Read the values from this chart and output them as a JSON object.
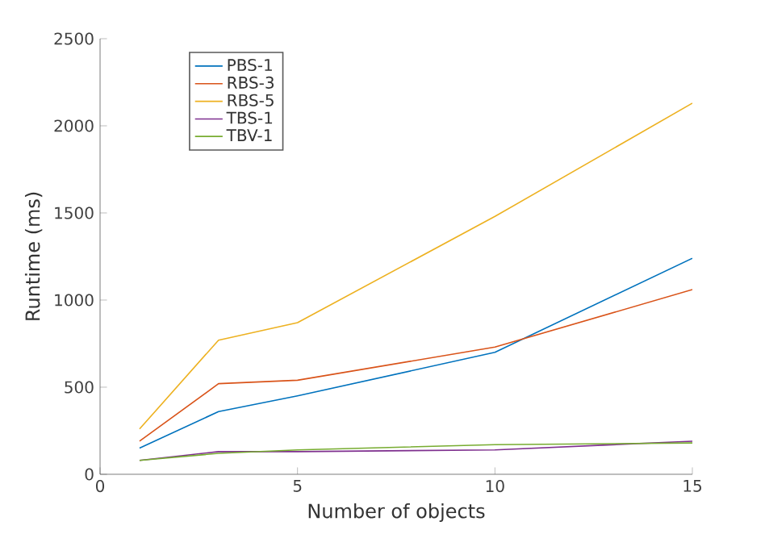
{
  "chart_data": {
    "type": "line",
    "xlabel": "Number of objects",
    "ylabel": "Runtime (ms)",
    "x": [
      1,
      3,
      5,
      10,
      15
    ],
    "series": [
      {
        "name": "PBS-1",
        "color": "#0072bd",
        "values": [
          150,
          360,
          450,
          700,
          1240
        ]
      },
      {
        "name": "RBS-3",
        "color": "#d95319",
        "values": [
          190,
          520,
          540,
          730,
          1060
        ]
      },
      {
        "name": "RBS-5",
        "color": "#edb120",
        "values": [
          260,
          770,
          870,
          1480,
          2130
        ]
      },
      {
        "name": "TBS-1",
        "color": "#7e2f8e",
        "values": [
          80,
          130,
          130,
          140,
          190
        ]
      },
      {
        "name": "TBV-1",
        "color": "#77ac30",
        "values": [
          80,
          120,
          140,
          170,
          180
        ]
      }
    ],
    "xlim": [
      0,
      15
    ],
    "xticks": [
      0,
      5,
      10,
      15
    ],
    "ylim": [
      0,
      2500
    ],
    "yticks": [
      0,
      500,
      1000,
      1500,
      2000,
      2500
    ],
    "grid": false,
    "legend": "top left",
    "marker": "none",
    "line_style": "solid"
  }
}
